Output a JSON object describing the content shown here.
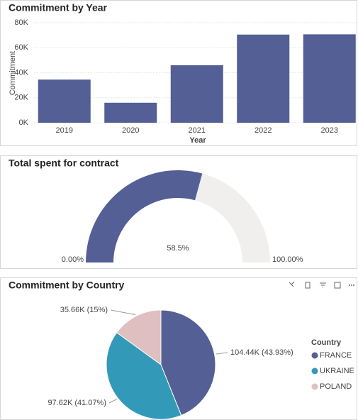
{
  "chart_data": [
    {
      "type": "bar",
      "title": "Commitment by Year",
      "x_label": "Year",
      "y_label": "Commitment",
      "categories": [
        "2019",
        "2020",
        "2021",
        "2022",
        "2023"
      ],
      "values": [
        34500,
        16000,
        46000,
        70500,
        70700
      ],
      "color": "#535f95",
      "ylim": [
        0,
        80000
      ],
      "yticks": [
        {
          "value": 0,
          "label": "0K"
        },
        {
          "value": 20000,
          "label": "20K"
        },
        {
          "value": 40000,
          "label": "40K"
        },
        {
          "value": 60000,
          "label": "60K"
        },
        {
          "value": 80000,
          "label": "80K"
        }
      ],
      "grid": true
    },
    {
      "type": "gauge",
      "title": "Total spent for contract",
      "value": 58.5,
      "value_label": "58.5%",
      "range": [
        0,
        100
      ],
      "range_labels": [
        "0.00%",
        "100.00%"
      ],
      "color": "#535f95",
      "track_color": "#f0efee"
    },
    {
      "type": "pie",
      "title": "Commitment by Country",
      "legend_title": "Country",
      "categories": [
        "FRANCE",
        "UKRAINE",
        "POLAND"
      ],
      "values": [
        104440,
        97620,
        35660
      ],
      "value_labels": [
        "104.44K (43.93%)",
        "97.62K (41.07%)",
        "35.66K (15%)"
      ],
      "colors": [
        "#535f95",
        "#3399b8",
        "#dfbfbf"
      ],
      "legend": "right"
    }
  ]
}
